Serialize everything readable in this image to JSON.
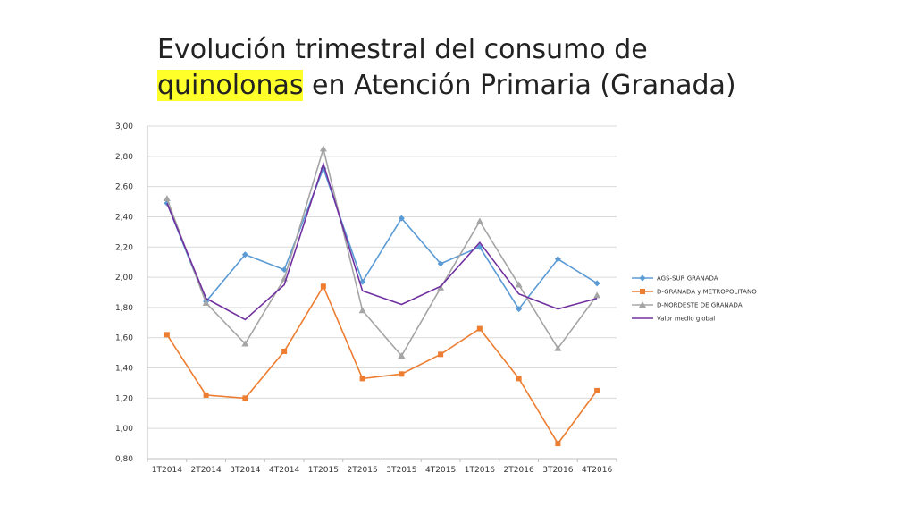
{
  "title": {
    "line1": "Evolución trimestral del  consumo de",
    "line2_highlight": "quinolonas",
    "line2_rest": " en Atención Primaria (Granada)"
  },
  "chart_data": {
    "type": "line",
    "categories": [
      "1T2014",
      "2T2014",
      "3T2014",
      "4T2014",
      "1T2015",
      "2T2015",
      "3T2015",
      "4T2015",
      "1T2016",
      "2T2016",
      "3T2016",
      "4T2016"
    ],
    "ylim": [
      0.8,
      3.0
    ],
    "yticks": [
      "0,80",
      "1,00",
      "1,20",
      "1,40",
      "1,60",
      "1,80",
      "2,00",
      "2,20",
      "2,40",
      "2,60",
      "2,80",
      "3,00"
    ],
    "grid": true,
    "legend_position": "right",
    "series": [
      {
        "name": "AGS-SUR GRANADA",
        "color": "#5b9bd5",
        "marker": "diamond",
        "values": [
          2.49,
          1.84,
          2.15,
          2.05,
          2.72,
          1.97,
          2.39,
          2.09,
          2.2,
          1.79,
          2.12,
          1.96
        ]
      },
      {
        "name": "D-GRANADA y METROPOLITANO",
        "color": "#ed7d31",
        "marker": "square",
        "values": [
          1.62,
          1.22,
          1.2,
          1.51,
          1.94,
          1.33,
          1.36,
          1.49,
          1.66,
          1.33,
          0.9,
          1.25
        ]
      },
      {
        "name": "D-NORDESTE DE GRANADA",
        "color": "#a5a5a5",
        "marker": "triangle",
        "values": [
          2.52,
          1.83,
          1.56,
          1.99,
          2.85,
          1.78,
          1.48,
          1.93,
          2.37,
          1.95,
          1.53,
          1.88
        ]
      },
      {
        "name": "Valor medio global",
        "color": "#7030a0",
        "marker": "none",
        "values": [
          2.49,
          1.86,
          1.72,
          1.95,
          2.75,
          1.91,
          1.82,
          1.94,
          2.23,
          1.89,
          1.79,
          1.86
        ]
      }
    ]
  }
}
